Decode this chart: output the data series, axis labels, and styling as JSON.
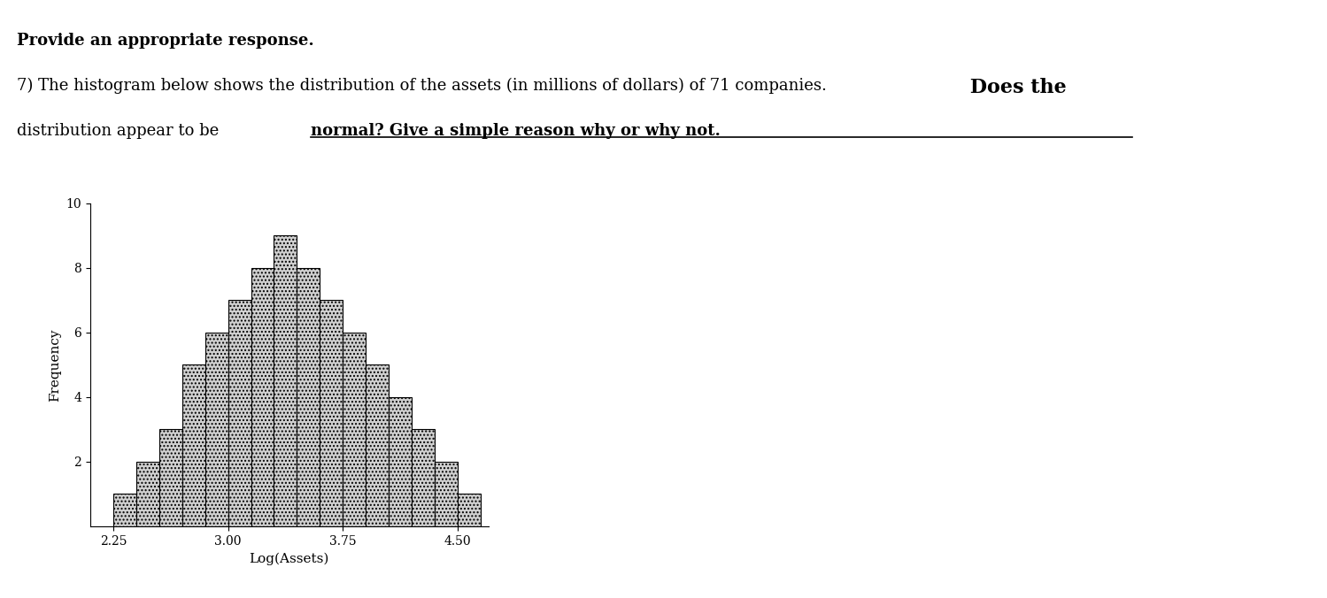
{
  "bar_heights": [
    1,
    2,
    3,
    5,
    6,
    7,
    8,
    9,
    8,
    7,
    6,
    5,
    4,
    3,
    2,
    1
  ],
  "bar_left_start": 2.25,
  "bar_width": 0.15,
  "bar_color": "#d0d0d0",
  "bar_edgecolor": "#000000",
  "xlabel": "Log(Assets)",
  "ylabel": "Frequency",
  "ylim": [
    0,
    10
  ],
  "yticks": [
    2,
    4,
    6,
    8,
    10
  ],
  "xticks": [
    2.25,
    3.0,
    3.75,
    4.5
  ],
  "xlim": [
    2.1,
    4.7
  ],
  "fig_width": 14.99,
  "fig_height": 6.76,
  "dpi": 100,
  "background_color": "#ffffff",
  "text_color": "#000000",
  "hatch_pattern": "....",
  "font_size_header": 13,
  "font_size_question": 13,
  "font_size_bold_large": 16,
  "font_size_axis_label": 11,
  "font_size_tick": 10
}
